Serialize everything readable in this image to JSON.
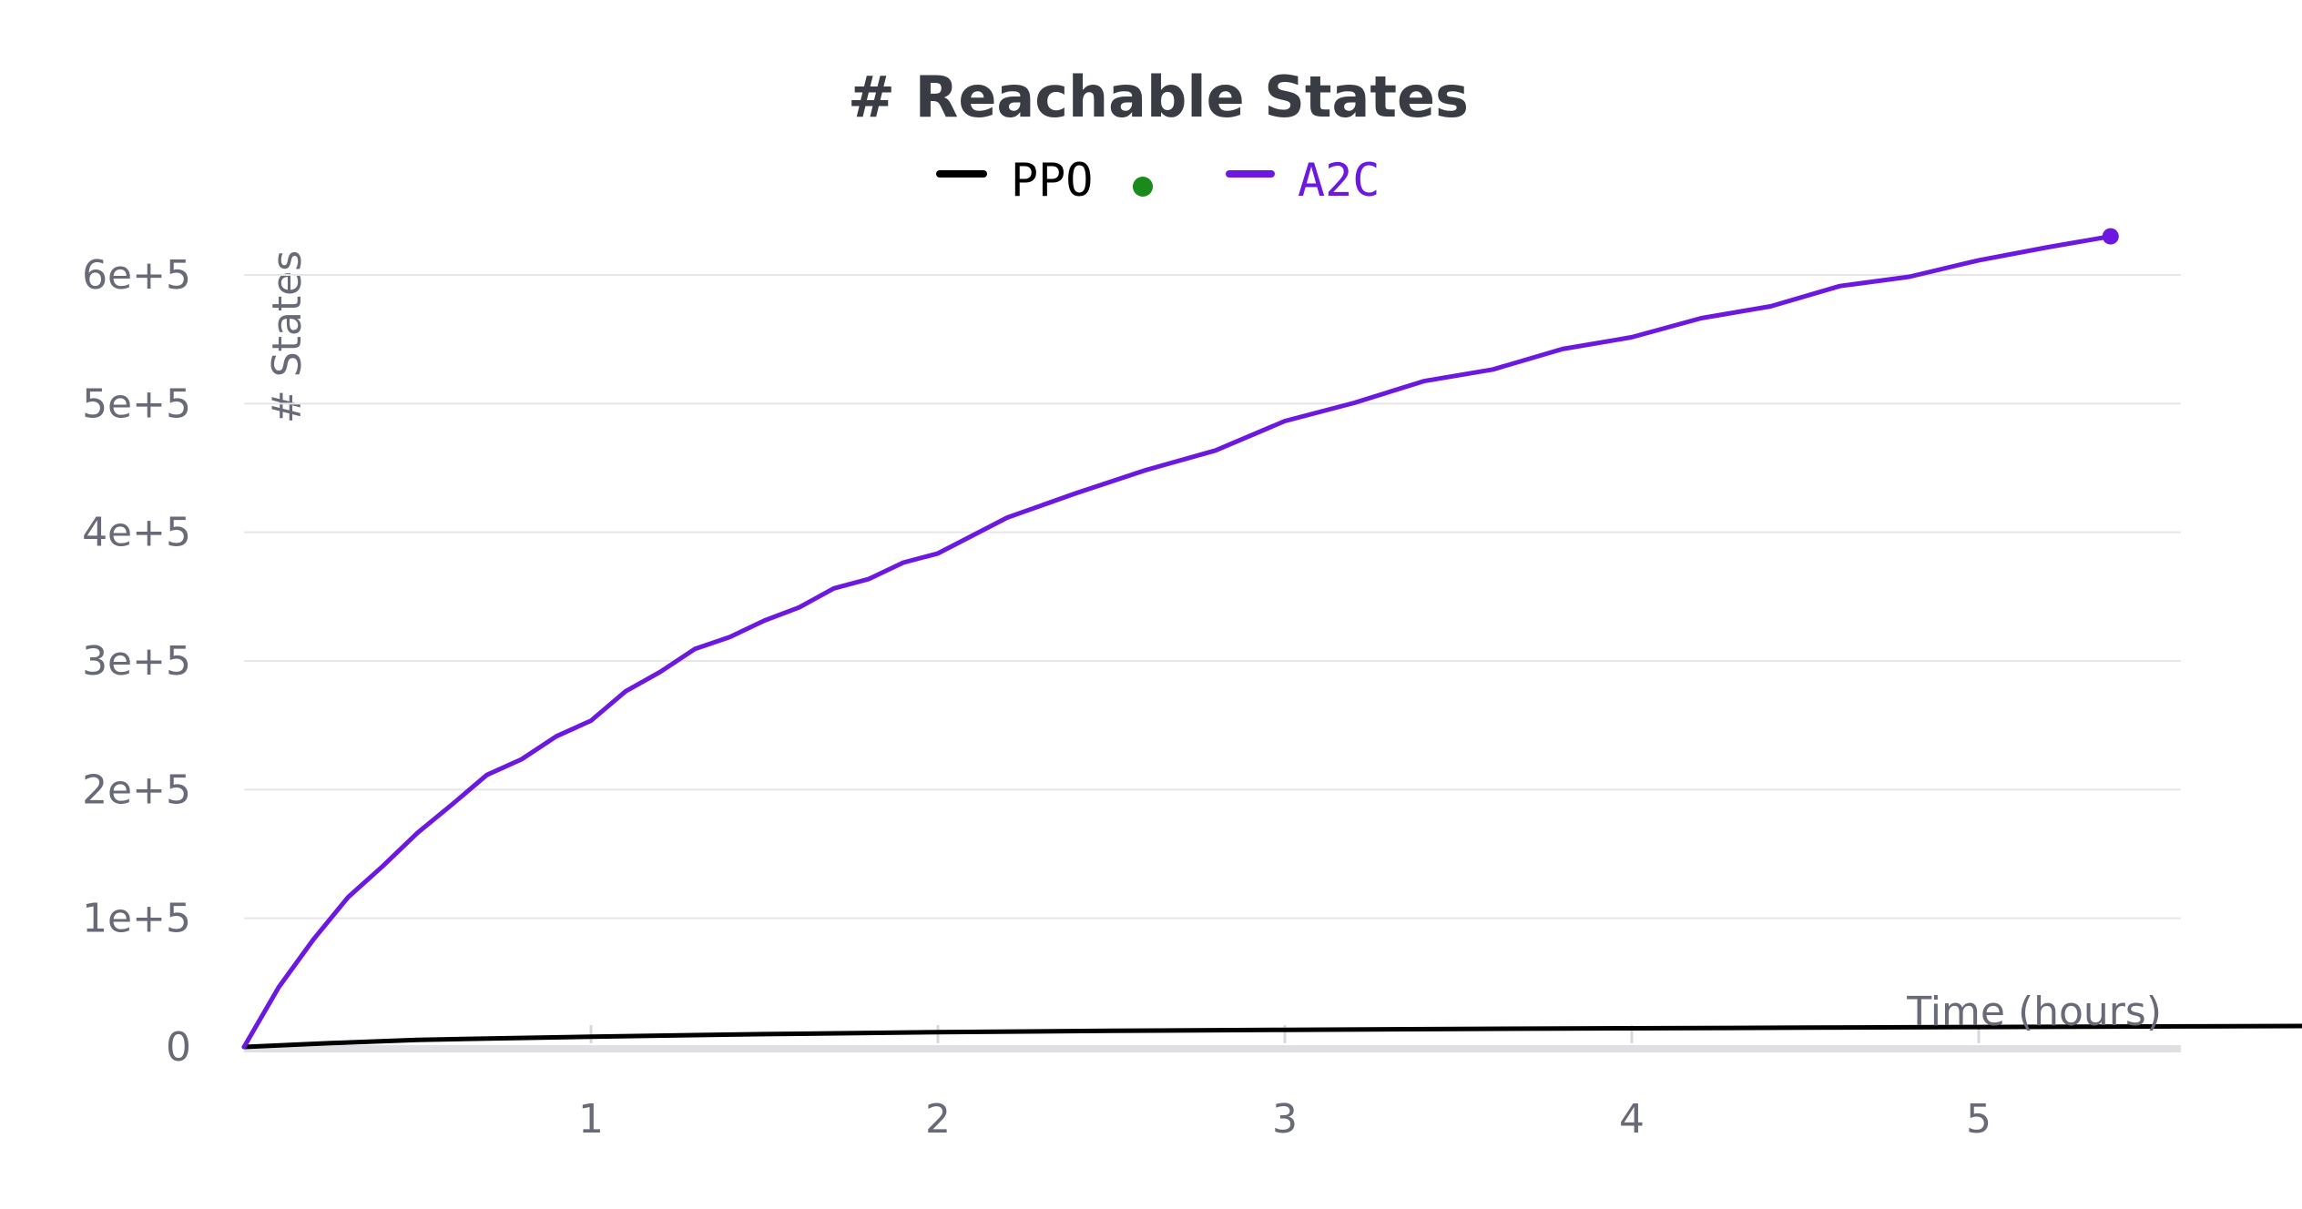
{
  "chart_data": {
    "type": "line",
    "title": "# Reachable States",
    "xlabel": "Time (hours)",
    "ylabel": "# States",
    "xlim": [
      0,
      5.6
    ],
    "ylim": [
      0,
      600000
    ],
    "x_ticks": [
      1,
      2,
      3,
      4,
      5
    ],
    "y_ticks": [
      0,
      100000,
      200000,
      300000,
      400000,
      500000,
      600000
    ],
    "y_tick_labels": [
      "0",
      "1e+5",
      "2e+5",
      "3e+5",
      "4e+5",
      "5e+5",
      "6e+5"
    ],
    "x_tick_labels": [
      "1",
      "2",
      "3",
      "4",
      "5"
    ],
    "grid": true,
    "legend_position": "top-center",
    "series": [
      {
        "name": "PPO",
        "color": "#000000",
        "x": [
          0,
          0.25,
          0.5,
          1,
          1.5,
          2,
          2.5,
          3,
          3.5,
          4,
          4.5,
          5,
          5.6,
          6.2
        ],
        "values": [
          0,
          3000,
          5500,
          8000,
          10000,
          11500,
          12500,
          13300,
          14000,
          14500,
          15000,
          15500,
          16000,
          16500
        ]
      },
      {
        "name": "A2C",
        "color": "#6c18e0",
        "x": [
          0,
          0.1,
          0.2,
          0.3,
          0.4,
          0.5,
          0.6,
          0.7,
          0.8,
          0.9,
          1.0,
          1.1,
          1.2,
          1.3,
          1.4,
          1.5,
          1.6,
          1.7,
          1.8,
          1.9,
          2.0,
          2.2,
          2.4,
          2.6,
          2.8,
          3.0,
          3.2,
          3.4,
          3.6,
          3.8,
          4.0,
          4.2,
          4.4,
          4.6,
          4.8,
          5.0,
          5.2,
          5.38
        ],
        "values": [
          0,
          45000,
          85000,
          115000,
          142000,
          165000,
          190000,
          210000,
          225000,
          240000,
          255000,
          275000,
          293000,
          308000,
          320000,
          330000,
          343000,
          355000,
          365000,
          375000,
          385000,
          410000,
          432000,
          447000,
          465000,
          485000,
          502000,
          516000,
          528000,
          541000,
          553000,
          565000,
          577000,
          590000,
          600000,
          610000,
          623000,
          630000
        ]
      }
    ]
  },
  "colors": {
    "background": "#ffffff",
    "grid": "#e6e6ea",
    "tick_text": "#686a78",
    "title_text": "#3a3c44",
    "endpoint_marker": "#1a8a1a"
  }
}
